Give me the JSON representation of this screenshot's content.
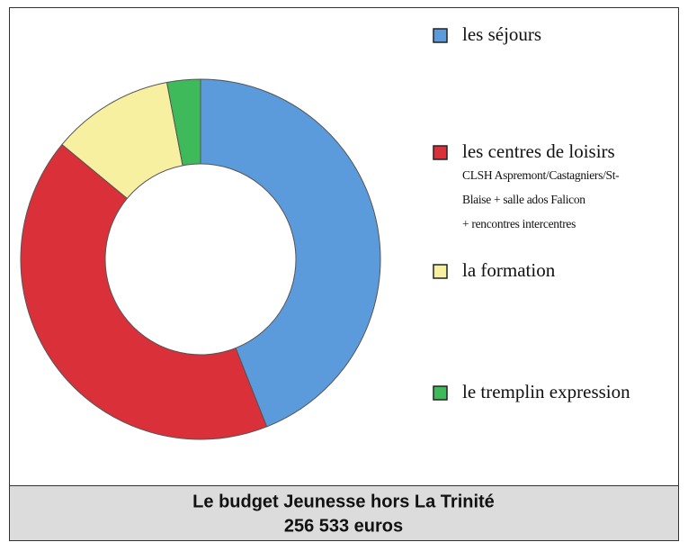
{
  "chart_data": {
    "type": "donut",
    "categories": [
      "les séjours",
      "les centres de loisirs",
      "la formation",
      "le tremplin expression"
    ],
    "values": [
      44,
      42,
      11,
      3
    ],
    "colors": [
      "#5b9bdc",
      "#d9303a",
      "#f6f0a0",
      "#3fba5a"
    ],
    "category_notes": [
      null,
      [
        "CLSH Aspremont/Castagniers/St-",
        "Blaise + salle ados Falicon",
        "+ rencontres intercentres"
      ],
      null,
      null
    ],
    "title": "Le budget Jeunesse hors La Trinité",
    "subtitle": "256 533 euros"
  }
}
